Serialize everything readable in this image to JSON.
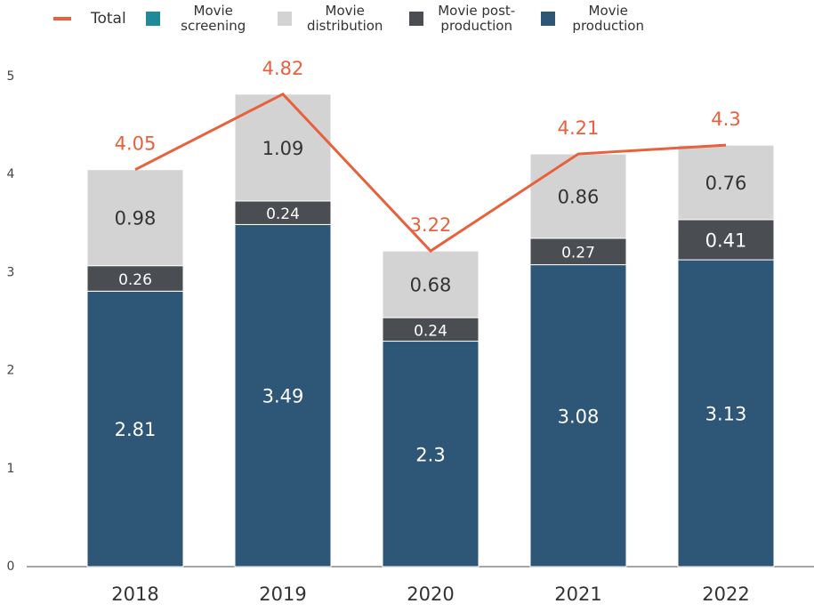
{
  "chart_data": {
    "type": "bar",
    "categories": [
      "2018",
      "2019",
      "2020",
      "2021",
      "2022"
    ],
    "series": [
      {
        "name": "Total",
        "type": "line",
        "color": "#e8603c",
        "values": [
          4.05,
          4.82,
          3.22,
          4.21,
          4.3
        ]
      },
      {
        "name": "Movie screening",
        "color": "#1e8a9a",
        "values": [
          0,
          0,
          0,
          0,
          0
        ]
      },
      {
        "name": "Movie distribution",
        "color": "#d3d3d3",
        "values": [
          0.98,
          1.09,
          0.68,
          0.86,
          0.76
        ]
      },
      {
        "name": "Movie post-production",
        "color": "#4a4d52",
        "values": [
          0.26,
          0.24,
          0.24,
          0.27,
          0.41
        ]
      },
      {
        "name": "Movie production",
        "color": "#2d5677",
        "values": [
          2.81,
          3.49,
          2.3,
          3.08,
          3.13
        ]
      }
    ],
    "ylim": [
      0,
      5
    ],
    "yticks": [
      0,
      1,
      2,
      3,
      4,
      5
    ],
    "grid": false,
    "legend": "top"
  }
}
